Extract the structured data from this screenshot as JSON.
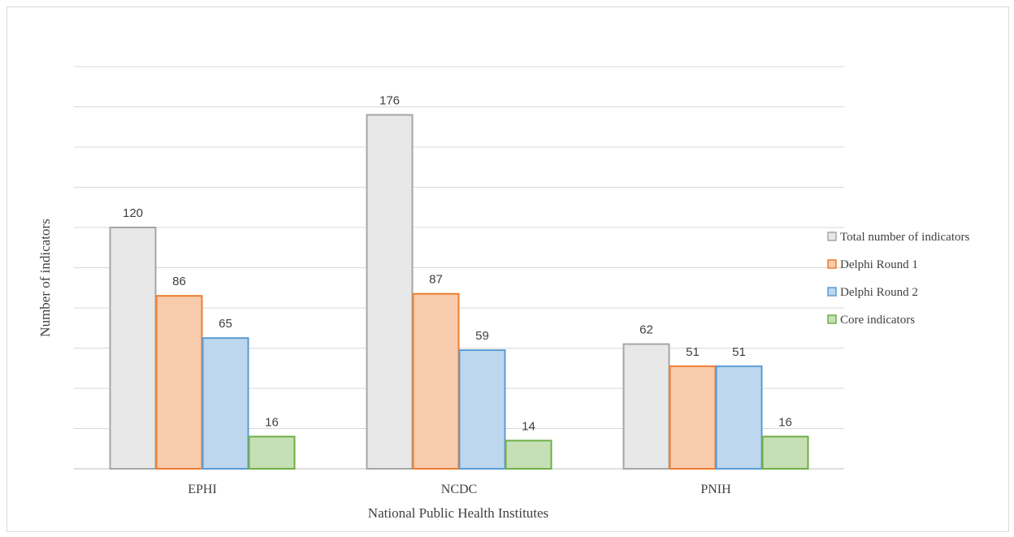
{
  "chart_data": {
    "type": "bar",
    "title": "",
    "xlabel": "National Public Health Institutes",
    "ylabel": "Number of indicators",
    "categories": [
      "EPHI",
      "NCDC",
      "PNIH"
    ],
    "ylim": [
      0,
      200
    ],
    "grid": true,
    "legend": "right",
    "series": [
      {
        "name": "Total number of indicators",
        "values": [
          120,
          176,
          62
        ],
        "color": "#e8e8e8",
        "stroke": "#a6a6a6"
      },
      {
        "name": "Delphi Round 1",
        "values": [
          86,
          87,
          51
        ],
        "color": "#f8cbad",
        "stroke": "#ed7d31"
      },
      {
        "name": "Delphi Round 2",
        "values": [
          65,
          59,
          51
        ],
        "color": "#bdd7ee",
        "stroke": "#5b9bd5"
      },
      {
        "name": "Core indicators",
        "values": [
          16,
          14,
          16
        ],
        "color": "#c5e0b4",
        "stroke": "#70ad47"
      }
    ]
  }
}
